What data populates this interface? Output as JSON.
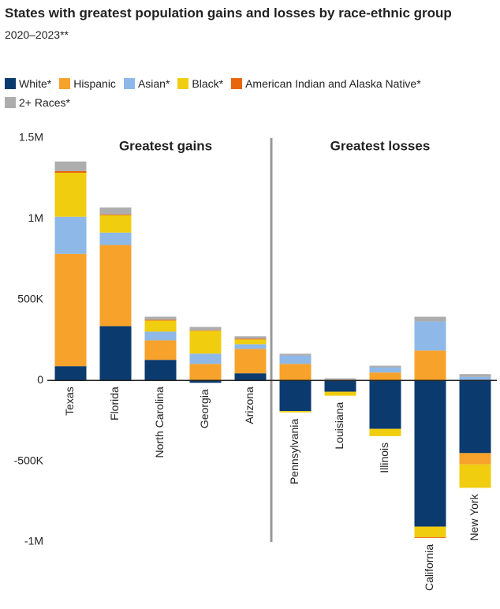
{
  "chart_data": {
    "type": "bar",
    "stacked": true,
    "title": "States with greatest population gains and losses by race-ethnic group",
    "subtitle": "2020–2023**",
    "annotations": [
      "Greatest gains",
      "Greatest losses"
    ],
    "categories": [
      "Texas",
      "Florida",
      "North Carolina",
      "Georgia",
      "Arizona",
      "Pennsylvania",
      "Louisiana",
      "Illinois",
      "California",
      "New York"
    ],
    "series": [
      {
        "name": "White*",
        "color": "#0b3a6e",
        "values": [
          88000,
          336000,
          127000,
          -15000,
          44000,
          -190000,
          -70000,
          -300000,
          -905000,
          -450000
        ]
      },
      {
        "name": "Hispanic",
        "color": "#f7a22b",
        "values": [
          695000,
          502000,
          121000,
          102000,
          151000,
          102000,
          5000,
          49000,
          185000,
          -70000
        ]
      },
      {
        "name": "Asian*",
        "color": "#8db8e8",
        "values": [
          230000,
          77000,
          54000,
          64000,
          29000,
          54000,
          3000,
          34000,
          180000,
          24000
        ]
      },
      {
        "name": "Black*",
        "color": "#f0cd0f",
        "values": [
          272000,
          107000,
          68000,
          141000,
          29000,
          -8000,
          -25000,
          -45000,
          -65000,
          -145000
        ]
      },
      {
        "name": "American Indian and Alaska Native*",
        "color": "#e8660c",
        "values": [
          10000,
          5000,
          5000,
          3000,
          5000,
          1000,
          1000,
          1000,
          -5000,
          1000
        ]
      },
      {
        "name": "2+ Races*",
        "color": "#adadad",
        "values": [
          60000,
          43000,
          19000,
          21000,
          15000,
          8000,
          4000,
          7000,
          29000,
          14000
        ]
      }
    ],
    "ylim": [
      -1000000,
      1500000
    ],
    "yticks": [
      {
        "value": -1000000,
        "label": "-1M"
      },
      {
        "value": -500000,
        "label": "-500K"
      },
      0,
      {
        "value": 500000,
        "label": "500K"
      },
      {
        "value": 1000000,
        "label": "1M"
      },
      {
        "value": 1500000,
        "label": "1.5M"
      }
    ],
    "grid": false
  }
}
